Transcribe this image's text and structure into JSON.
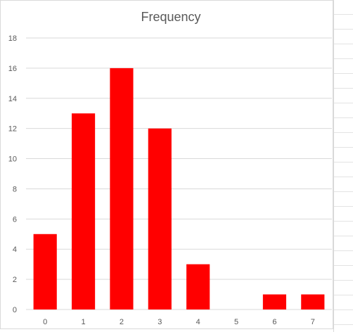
{
  "chart_data": {
    "type": "bar",
    "title": "Frequency",
    "xlabel": "",
    "ylabel": "",
    "categories": [
      "0",
      "1",
      "2",
      "3",
      "4",
      "5",
      "6",
      "7"
    ],
    "values": [
      5,
      13,
      16,
      12,
      3,
      0,
      1,
      1
    ],
    "ylim": [
      0,
      18
    ],
    "yticks": [
      "0",
      "2",
      "4",
      "6",
      "8",
      "10",
      "12",
      "14",
      "16",
      "18"
    ],
    "grid": true,
    "legend": "none",
    "bar_color": "#FF0000",
    "grid_color": "#D9D9D9"
  }
}
